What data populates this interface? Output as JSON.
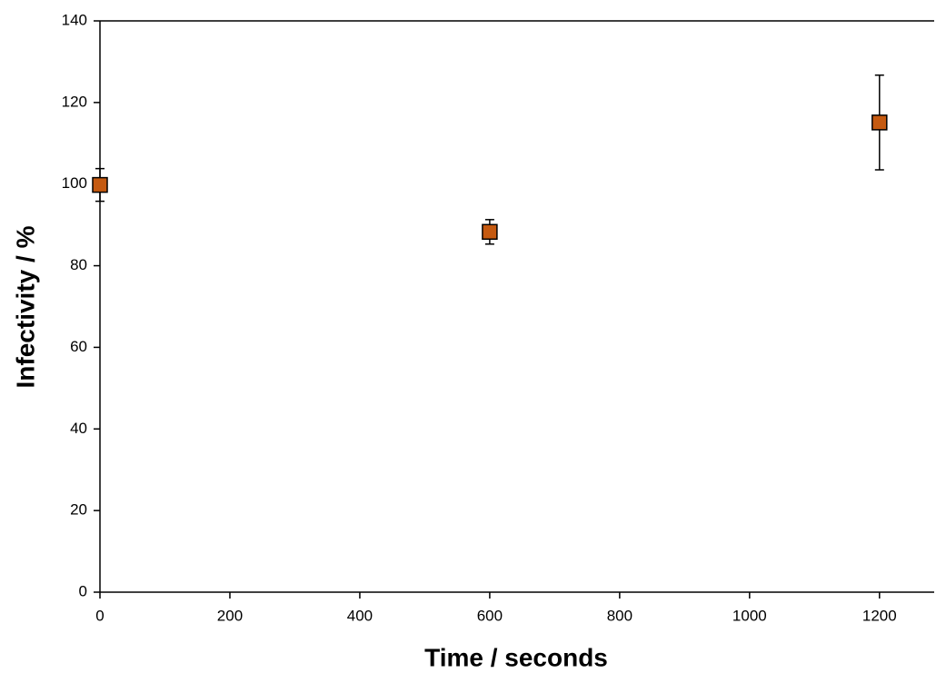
{
  "chart_data": {
    "type": "scatter",
    "xlabel": "Time / seconds",
    "ylabel": "Infectivity / %",
    "series": [
      {
        "x": [
          0,
          600,
          1200
        ],
        "values": [
          99.8,
          88.3,
          115.1
        ],
        "errors": [
          4,
          3,
          11.6
        ],
        "color": "#c55a11"
      }
    ],
    "xlim": [
      0,
      1280
    ],
    "xticks": [
      0,
      200,
      400,
      600,
      800,
      1000,
      1200
    ],
    "ylim": [
      0,
      140
    ],
    "yticks": [
      0,
      20,
      40,
      60,
      80,
      100,
      120,
      140
    ],
    "grid": false
  }
}
